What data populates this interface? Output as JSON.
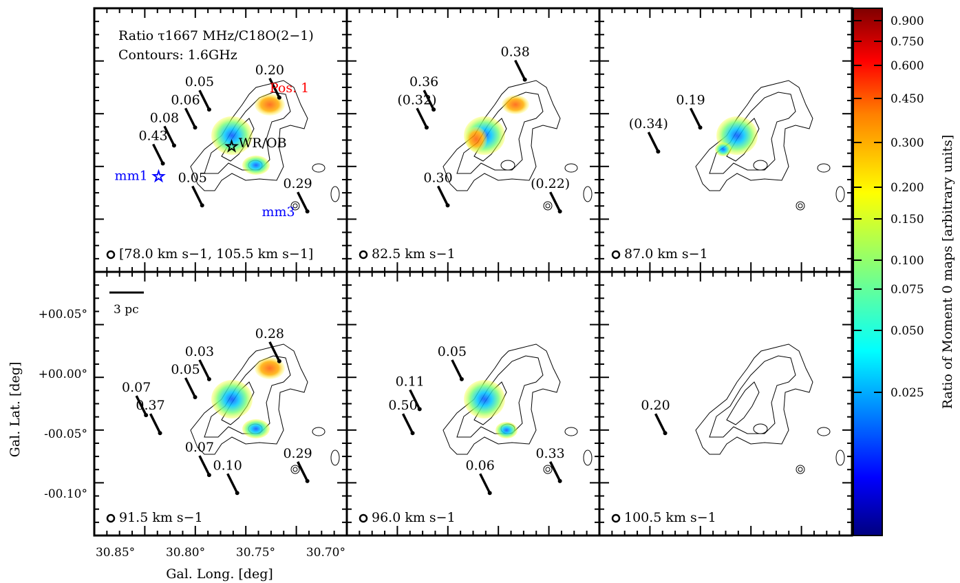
{
  "chart_data": {
    "type": "heatmap",
    "title": "Ratio τ1667 MHz/C18O(2−1)",
    "subtitle": "Contours: 1.6GHz",
    "xlabel": "Gal. Long. [deg]",
    "ylabel": "Gal. Lat. [deg]",
    "x_ticks": [
      "30.85°",
      "30.80°",
      "30.75°",
      "30.70°"
    ],
    "y_ticks": [
      "+00.05°",
      "+00.00°",
      "-00.05°",
      "-00.10°"
    ],
    "colorbar": {
      "label": "Ratio of Moment 0 maps [arbitrary units]",
      "ticks": [
        "0.900",
        "0.750",
        "0.600",
        "0.450",
        "0.300",
        "0.200",
        "0.150",
        "0.100",
        "0.075",
        "0.050",
        "0.025"
      ],
      "tick_values": [
        0.9,
        0.75,
        0.6,
        0.45,
        0.3,
        0.2,
        0.15,
        0.1,
        0.075,
        0.05,
        0.025
      ],
      "colormap": "jet",
      "colors": [
        "#00007f",
        "#0000ff",
        "#007fff",
        "#00ffff",
        "#7fff7f",
        "#ffff00",
        "#ff7f00",
        "#ff0000",
        "#7f0000"
      ]
    },
    "scale_bar": "3 pc",
    "panels": [
      {
        "velocity": "[78.0 km s−1, 105.5 km s−1]",
        "markers": [
          {
            "name": "mm1",
            "x": 30.822,
            "y": -0.055
          },
          {
            "name": "mm3",
            "x": 30.721,
            "y": -0.085
          },
          {
            "name": "WR/OB",
            "x": 30.768,
            "y": -0.03
          },
          {
            "name": "Pos. 1",
            "x": 30.74,
            "y": 0.015
          }
        ],
        "values": [
          {
            "label": "0.20",
            "x": 30.74,
            "y": 0.03
          },
          {
            "label": "0.05",
            "x": 30.79,
            "y": 0.02
          },
          {
            "label": "0.06",
            "x": 30.8,
            "y": 0.005
          },
          {
            "label": "0.08",
            "x": 30.815,
            "y": -0.01
          },
          {
            "label": "0.43",
            "x": 30.823,
            "y": -0.025
          },
          {
            "label": "0.05",
            "x": 30.795,
            "y": -0.06
          },
          {
            "label": "0.29",
            "x": 30.72,
            "y": -0.065
          }
        ]
      },
      {
        "velocity": "82.5 km s−1",
        "values": [
          {
            "label": "0.38",
            "x": 30.745,
            "y": 0.045
          },
          {
            "label": "0.36",
            "x": 30.81,
            "y": 0.02
          },
          {
            "label": "(0.32)",
            "x": 30.815,
            "y": 0.005
          },
          {
            "label": "0.30",
            "x": 30.8,
            "y": -0.06
          },
          {
            "label": "(0.22)",
            "x": 30.72,
            "y": -0.065
          }
        ]
      },
      {
        "velocity": "87.0 km s−1",
        "values": [
          {
            "label": "0.19",
            "x": 30.8,
            "y": 0.005
          },
          {
            "label": "(0.34)",
            "x": 30.83,
            "y": -0.015
          }
        ]
      },
      {
        "velocity": "91.5 km s−1",
        "values": [
          {
            "label": "0.28",
            "x": 30.74,
            "y": 0.03
          },
          {
            "label": "0.03",
            "x": 30.79,
            "y": 0.015
          },
          {
            "label": "0.05",
            "x": 30.8,
            "y": 0.0
          },
          {
            "label": "0.07",
            "x": 30.835,
            "y": -0.015
          },
          {
            "label": "0.37",
            "x": 30.825,
            "y": -0.03
          },
          {
            "label": "0.07",
            "x": 30.79,
            "y": -0.065
          },
          {
            "label": "0.10",
            "x": 30.77,
            "y": -0.08
          },
          {
            "label": "0.29",
            "x": 30.72,
            "y": -0.07
          }
        ]
      },
      {
        "velocity": "96.0 km s−1",
        "values": [
          {
            "label": "0.05",
            "x": 30.79,
            "y": 0.015
          },
          {
            "label": "0.11",
            "x": 30.82,
            "y": -0.01
          },
          {
            "label": "0.50",
            "x": 30.825,
            "y": -0.03
          },
          {
            "label": "0.06",
            "x": 30.77,
            "y": -0.08
          },
          {
            "label": "0.33",
            "x": 30.72,
            "y": -0.07
          }
        ]
      },
      {
        "velocity": "100.5 km s−1",
        "values": [
          {
            "label": "0.20",
            "x": 30.825,
            "y": -0.03
          }
        ]
      }
    ]
  }
}
